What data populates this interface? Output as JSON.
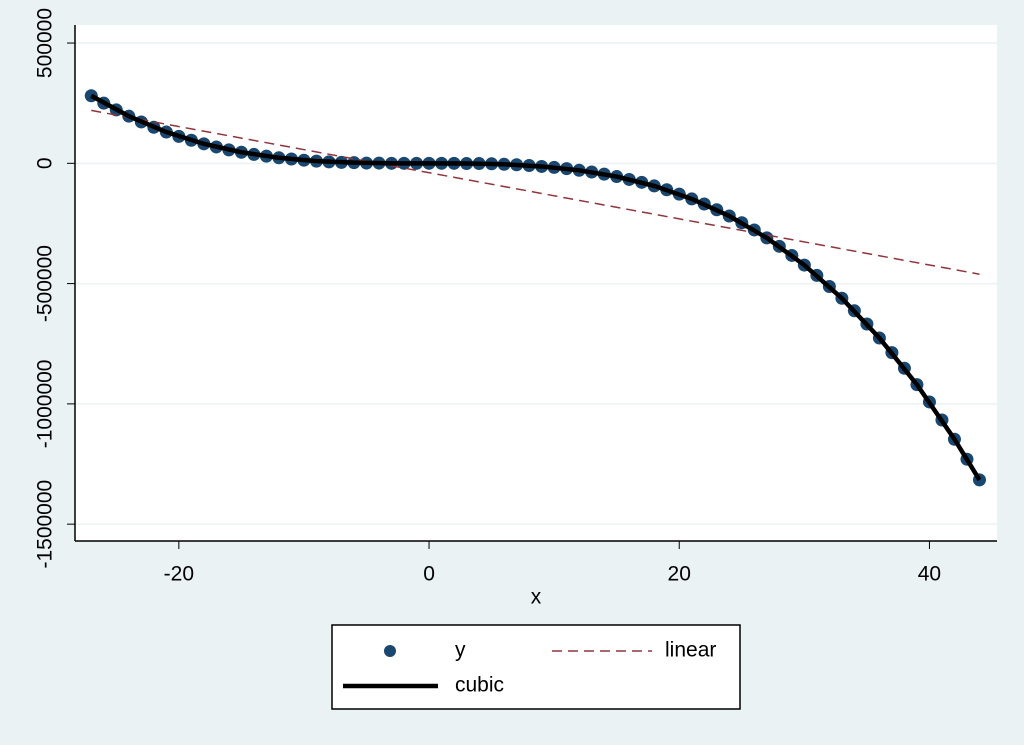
{
  "chart_data": {
    "type": "scatter",
    "xlabel": "x",
    "xlim": [
      -28.3,
      45.4
    ],
    "xticks": [
      -20,
      0,
      20,
      40
    ],
    "ylim": [
      -1570000,
      575000
    ],
    "yticks": [
      500000,
      0,
      -500000,
      -1000000,
      -1500000
    ],
    "grid": true,
    "series": [
      {
        "name": "y",
        "color": "#1a476f",
        "style": "markers",
        "x": [
          -27,
          -26,
          -25,
          -24,
          -23,
          -22,
          -21,
          -20,
          -19,
          -18,
          -17,
          -16,
          -15,
          -14,
          -13,
          -12,
          -11,
          -10,
          -9,
          -8,
          -7,
          -6,
          -5,
          -4,
          -3,
          -2,
          -1,
          0,
          1,
          2,
          3,
          4,
          5,
          6,
          7,
          8,
          9,
          10,
          11,
          12,
          13,
          14,
          15,
          16,
          17,
          18,
          19,
          20,
          21,
          22,
          23,
          24,
          25,
          26,
          27,
          28,
          29,
          30,
          31,
          32,
          33,
          34,
          35,
          36,
          37,
          38,
          39,
          40,
          41,
          42,
          43,
          44
        ],
        "values": [
          281000,
          250000,
          222000,
          196000,
          172000,
          150000,
          130000,
          112000,
          96000,
          81000,
          68000,
          56000,
          46000,
          37000,
          30000,
          23000,
          18000,
          13000,
          9000,
          6000,
          4000,
          3000,
          1000,
          1000,
          0,
          0,
          0,
          0,
          0,
          0,
          -1000,
          -1000,
          -2000,
          -4000,
          -6000,
          -9000,
          -13000,
          -17000,
          -22000,
          -29000,
          -36000,
          -45000,
          -55000,
          -67000,
          -79000,
          -94000,
          -110000,
          -128000,
          -148000,
          -169000,
          -193000,
          -219000,
          -247000,
          -277000,
          -310000,
          -345000,
          -383000,
          -423000,
          -466000,
          -512000,
          -561000,
          -613000,
          -668000,
          -726000,
          -787000,
          -852000,
          -920000,
          -992000,
          -1067000,
          -1147000,
          -1230000,
          -1316000
        ]
      },
      {
        "name": "linear",
        "color": "#90353b",
        "style": "dashed",
        "x": [
          -27,
          44
        ],
        "values": [
          220000,
          -461000
        ]
      },
      {
        "name": "cubic",
        "color": "#000000",
        "style": "solid",
        "x": [
          -27,
          -24,
          -21,
          -18,
          -15,
          -12,
          -9,
          -6,
          -3,
          0,
          3,
          6,
          9,
          12,
          15,
          18,
          21,
          24,
          27,
          30,
          33,
          36,
          39,
          42,
          44
        ],
        "values": [
          281000,
          196000,
          130000,
          81000,
          46000,
          23000,
          9000,
          3000,
          0,
          0,
          -1000,
          -4000,
          -13000,
          -29000,
          -55000,
          -94000,
          -148000,
          -219000,
          -310000,
          -423000,
          -561000,
          -726000,
          -920000,
          -1147000,
          -1316000
        ]
      }
    ]
  }
}
